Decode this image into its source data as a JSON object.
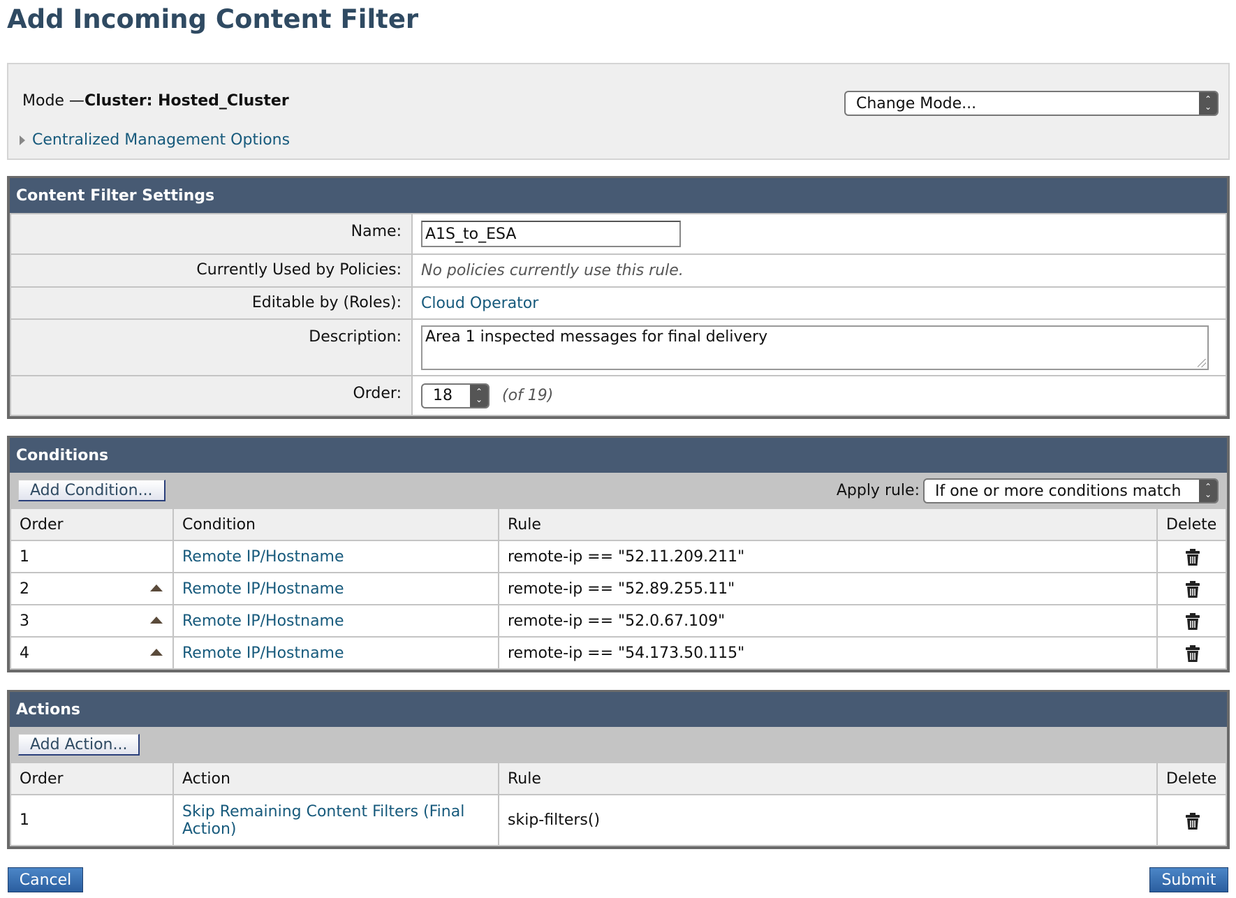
{
  "page_title": "Add Incoming Content Filter",
  "mode": {
    "prefix": "Mode —",
    "value": "Cluster: Hosted_Cluster",
    "change_mode": "Change Mode...",
    "centralized": "Centralized Management Options"
  },
  "settings": {
    "title": "Content Filter Settings",
    "name_label": "Name:",
    "name_value": "A1S_to_ESA",
    "used_label": "Currently Used by Policies:",
    "used_value": "No policies currently use this rule.",
    "roles_label": "Editable by (Roles):",
    "roles_value": "Cloud Operator",
    "desc_label": "Description:",
    "desc_value": "Area 1 inspected messages for final delivery",
    "order_label": "Order:",
    "order_value": "18",
    "order_of": "(of 19)"
  },
  "conditions": {
    "title": "Conditions",
    "add_button": "Add Condition...",
    "apply_label": "Apply rule:",
    "apply_value": "If one or more conditions match",
    "columns": [
      "Order",
      "Condition",
      "Rule",
      "Delete"
    ],
    "rows": [
      {
        "order": "1",
        "condition": "Remote IP/Hostname",
        "rule": "remote-ip == \"52.11.209.211\""
      },
      {
        "order": "2",
        "condition": "Remote IP/Hostname",
        "rule": "remote-ip == \"52.89.255.11\""
      },
      {
        "order": "3",
        "condition": "Remote IP/Hostname",
        "rule": "remote-ip == \"52.0.67.109\""
      },
      {
        "order": "4",
        "condition": "Remote IP/Hostname",
        "rule": "remote-ip == \"54.173.50.115\""
      }
    ]
  },
  "actions": {
    "title": "Actions",
    "add_button": "Add Action...",
    "columns": [
      "Order",
      "Action",
      "Rule",
      "Delete"
    ],
    "rows": [
      {
        "order": "1",
        "action": "Skip Remaining Content Filters (Final Action)",
        "rule": "skip-filters()"
      }
    ]
  },
  "buttons": {
    "cancel": "Cancel",
    "submit": "Submit"
  },
  "colors": {
    "header": "#475a73",
    "link": "#175a7c",
    "title": "#2f4a62"
  }
}
